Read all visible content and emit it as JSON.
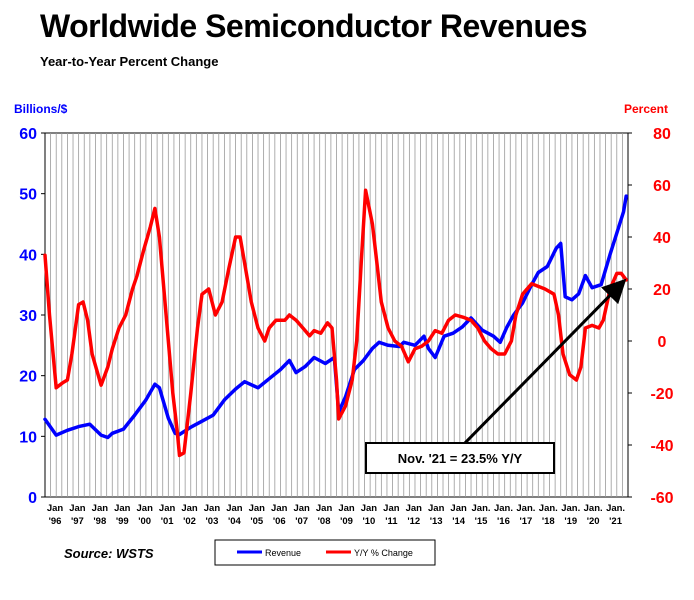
{
  "title": "Worldwide Semiconductor Revenues",
  "subtitle": "Year-to-Year Percent Change",
  "source": "Source: WSTS",
  "chart_data": {
    "type": "line",
    "left_axis": {
      "label": "Billions/$",
      "min": 0,
      "max": 60,
      "ticks": [
        0,
        10,
        20,
        30,
        40,
        50,
        60
      ],
      "color": "#0000ff"
    },
    "right_axis": {
      "label": "Percent",
      "min": -60,
      "max": 80,
      "ticks": [
        -60,
        -40,
        -20,
        0,
        20,
        40,
        60,
        80
      ],
      "color": "#ff0000"
    },
    "x_range": [
      1996,
      2022
    ],
    "x_ticks": [
      {
        "top": "Jan",
        "bottom": "'96"
      },
      {
        "top": "Jan",
        "bottom": "'97"
      },
      {
        "top": "Jan",
        "bottom": "'98"
      },
      {
        "top": "Jan",
        "bottom": "'99"
      },
      {
        "top": "Jan",
        "bottom": "'00"
      },
      {
        "top": "Jan",
        "bottom": "'01"
      },
      {
        "top": "Jan",
        "bottom": "'02"
      },
      {
        "top": "Jan",
        "bottom": "'03"
      },
      {
        "top": "Jan",
        "bottom": "'04"
      },
      {
        "top": "Jan",
        "bottom": "'05"
      },
      {
        "top": "Jan",
        "bottom": "'06"
      },
      {
        "top": "Jan",
        "bottom": "'07"
      },
      {
        "top": "Jan",
        "bottom": "'08"
      },
      {
        "top": "Jan",
        "bottom": "'09"
      },
      {
        "top": "Jan",
        "bottom": "'10"
      },
      {
        "top": "Jan",
        "bottom": "'11"
      },
      {
        "top": "Jan",
        "bottom": "'12"
      },
      {
        "top": "Jan",
        "bottom": "'13"
      },
      {
        "top": "Jan",
        "bottom": "'14"
      },
      {
        "top": "Jan.",
        "bottom": "'15"
      },
      {
        "top": "Jan.",
        "bottom": "'16"
      },
      {
        "top": "Jan.",
        "bottom": "'17"
      },
      {
        "top": "Jan.",
        "bottom": "'18"
      },
      {
        "top": "Jan.",
        "bottom": "'19"
      },
      {
        "top": "Jan.",
        "bottom": "'20"
      },
      {
        "top": "Jan.",
        "bottom": "'21"
      }
    ],
    "grid": "vertical",
    "legend_position": "bottom-center",
    "series": [
      {
        "name": "Revenue",
        "axis": "left",
        "color": "#0000ff",
        "points": [
          [
            1996.0,
            12.8
          ],
          [
            1996.5,
            10.2
          ],
          [
            1997.0,
            11.0
          ],
          [
            1997.5,
            11.6
          ],
          [
            1998.0,
            12.0
          ],
          [
            1998.5,
            10.2
          ],
          [
            1998.8,
            9.8
          ],
          [
            1999.0,
            10.5
          ],
          [
            1999.5,
            11.2
          ],
          [
            2000.0,
            13.5
          ],
          [
            2000.5,
            16.0
          ],
          [
            2000.9,
            18.6
          ],
          [
            2001.1,
            18.0
          ],
          [
            2001.5,
            13.0
          ],
          [
            2001.8,
            10.5
          ],
          [
            2002.0,
            10.3
          ],
          [
            2002.5,
            11.5
          ],
          [
            2003.0,
            12.5
          ],
          [
            2003.5,
            13.5
          ],
          [
            2004.0,
            16.0
          ],
          [
            2004.5,
            17.8
          ],
          [
            2004.9,
            19.0
          ],
          [
            2005.5,
            18.0
          ],
          [
            2006.0,
            19.5
          ],
          [
            2006.5,
            21.0
          ],
          [
            2006.9,
            22.5
          ],
          [
            2007.2,
            20.5
          ],
          [
            2007.6,
            21.5
          ],
          [
            2008.0,
            23.0
          ],
          [
            2008.5,
            22.0
          ],
          [
            2008.9,
            23.0
          ],
          [
            2009.1,
            14.0
          ],
          [
            2009.4,
            16.5
          ],
          [
            2009.8,
            21.0
          ],
          [
            2010.2,
            22.5
          ],
          [
            2010.6,
            24.5
          ],
          [
            2010.9,
            25.5
          ],
          [
            2011.3,
            25.0
          ],
          [
            2011.8,
            24.8
          ],
          [
            2012.0,
            25.5
          ],
          [
            2012.5,
            25.0
          ],
          [
            2012.9,
            26.5
          ],
          [
            2013.1,
            24.5
          ],
          [
            2013.4,
            23.0
          ],
          [
            2013.8,
            26.5
          ],
          [
            2014.2,
            27.0
          ],
          [
            2014.6,
            28.0
          ],
          [
            2015.0,
            29.5
          ],
          [
            2015.5,
            27.5
          ],
          [
            2016.0,
            26.5
          ],
          [
            2016.3,
            25.5
          ],
          [
            2016.6,
            28.0
          ],
          [
            2016.9,
            30.0
          ],
          [
            2017.3,
            32.0
          ],
          [
            2017.7,
            35.0
          ],
          [
            2018.0,
            37.0
          ],
          [
            2018.4,
            38.0
          ],
          [
            2018.8,
            41.0
          ],
          [
            2019.0,
            41.8
          ],
          [
            2019.2,
            33.0
          ],
          [
            2019.5,
            32.5
          ],
          [
            2019.8,
            33.5
          ],
          [
            2020.1,
            36.5
          ],
          [
            2020.4,
            34.5
          ],
          [
            2020.8,
            35.0
          ],
          [
            2021.2,
            40.0
          ],
          [
            2021.5,
            43.5
          ],
          [
            2021.8,
            47.0
          ],
          [
            2021.92,
            49.6
          ]
        ]
      },
      {
        "name": "Y/Y % Change",
        "axis": "right",
        "color": "#ff0000",
        "points": [
          [
            1996.0,
            33.0
          ],
          [
            1996.2,
            10.0
          ],
          [
            1996.5,
            -18.0
          ],
          [
            1996.8,
            -16.0
          ],
          [
            1997.0,
            -15.0
          ],
          [
            1997.2,
            -5.0
          ],
          [
            1997.5,
            14.0
          ],
          [
            1997.7,
            15.0
          ],
          [
            1997.9,
            8.0
          ],
          [
            1998.1,
            -5.0
          ],
          [
            1998.5,
            -17.0
          ],
          [
            1998.8,
            -10.0
          ],
          [
            1999.0,
            -3.0
          ],
          [
            1999.3,
            5.0
          ],
          [
            1999.6,
            10.0
          ],
          [
            1999.9,
            20.0
          ],
          [
            2000.1,
            25.0
          ],
          [
            2000.4,
            35.0
          ],
          [
            2000.7,
            44.0
          ],
          [
            2000.9,
            51.0
          ],
          [
            2001.1,
            40.0
          ],
          [
            2001.4,
            10.0
          ],
          [
            2001.7,
            -20.0
          ],
          [
            2001.9,
            -35.0
          ],
          [
            2002.0,
            -44.0
          ],
          [
            2002.2,
            -43.0
          ],
          [
            2002.5,
            -20.0
          ],
          [
            2002.8,
            5.0
          ],
          [
            2003.0,
            18.0
          ],
          [
            2003.3,
            20.0
          ],
          [
            2003.6,
            10.0
          ],
          [
            2003.9,
            15.0
          ],
          [
            2004.2,
            28.0
          ],
          [
            2004.5,
            40.0
          ],
          [
            2004.7,
            40.0
          ],
          [
            2004.9,
            30.0
          ],
          [
            2005.2,
            15.0
          ],
          [
            2005.5,
            5.0
          ],
          [
            2005.8,
            0.0
          ],
          [
            2006.0,
            5.0
          ],
          [
            2006.3,
            8.0
          ],
          [
            2006.7,
            8.0
          ],
          [
            2006.9,
            10.0
          ],
          [
            2007.2,
            8.0
          ],
          [
            2007.5,
            5.0
          ],
          [
            2007.8,
            2.0
          ],
          [
            2008.0,
            4.0
          ],
          [
            2008.3,
            3.0
          ],
          [
            2008.6,
            7.0
          ],
          [
            2008.8,
            5.0
          ],
          [
            2009.0,
            -15.0
          ],
          [
            2009.1,
            -30.0
          ],
          [
            2009.4,
            -25.0
          ],
          [
            2009.7,
            -15.0
          ],
          [
            2009.9,
            0.0
          ],
          [
            2010.1,
            30.0
          ],
          [
            2010.3,
            58.0
          ],
          [
            2010.6,
            45.0
          ],
          [
            2010.8,
            30.0
          ],
          [
            2011.0,
            15.0
          ],
          [
            2011.3,
            5.0
          ],
          [
            2011.6,
            0.0
          ],
          [
            2011.9,
            -2.0
          ],
          [
            2012.2,
            -8.0
          ],
          [
            2012.5,
            -3.0
          ],
          [
            2012.8,
            -2.0
          ],
          [
            2013.1,
            0.0
          ],
          [
            2013.4,
            4.0
          ],
          [
            2013.7,
            3.0
          ],
          [
            2014.0,
            8.0
          ],
          [
            2014.3,
            10.0
          ],
          [
            2014.7,
            9.0
          ],
          [
            2015.0,
            8.0
          ],
          [
            2015.3,
            5.0
          ],
          [
            2015.6,
            0.0
          ],
          [
            2015.9,
            -3.0
          ],
          [
            2016.2,
            -5.0
          ],
          [
            2016.5,
            -5.0
          ],
          [
            2016.8,
            0.0
          ],
          [
            2017.0,
            10.0
          ],
          [
            2017.3,
            18.0
          ],
          [
            2017.7,
            22.0
          ],
          [
            2018.0,
            21.0
          ],
          [
            2018.3,
            20.0
          ],
          [
            2018.7,
            18.0
          ],
          [
            2018.9,
            10.0
          ],
          [
            2019.1,
            -5.0
          ],
          [
            2019.4,
            -13.0
          ],
          [
            2019.7,
            -15.0
          ],
          [
            2019.9,
            -10.0
          ],
          [
            2020.1,
            5.0
          ],
          [
            2020.4,
            6.0
          ],
          [
            2020.7,
            5.0
          ],
          [
            2020.9,
            8.0
          ],
          [
            2021.2,
            20.0
          ],
          [
            2021.5,
            26.0
          ],
          [
            2021.7,
            26.0
          ],
          [
            2021.92,
            23.5
          ]
        ]
      }
    ],
    "annotations": [
      {
        "text": "Nov. '21 = 23.5% Y/Y",
        "arrow_to": [
          2021.92,
          23.5
        ],
        "arrow_from": [
          2014.3,
          -43.0
        ],
        "box_center": [
          2015.7,
          -47.5
        ]
      }
    ]
  }
}
